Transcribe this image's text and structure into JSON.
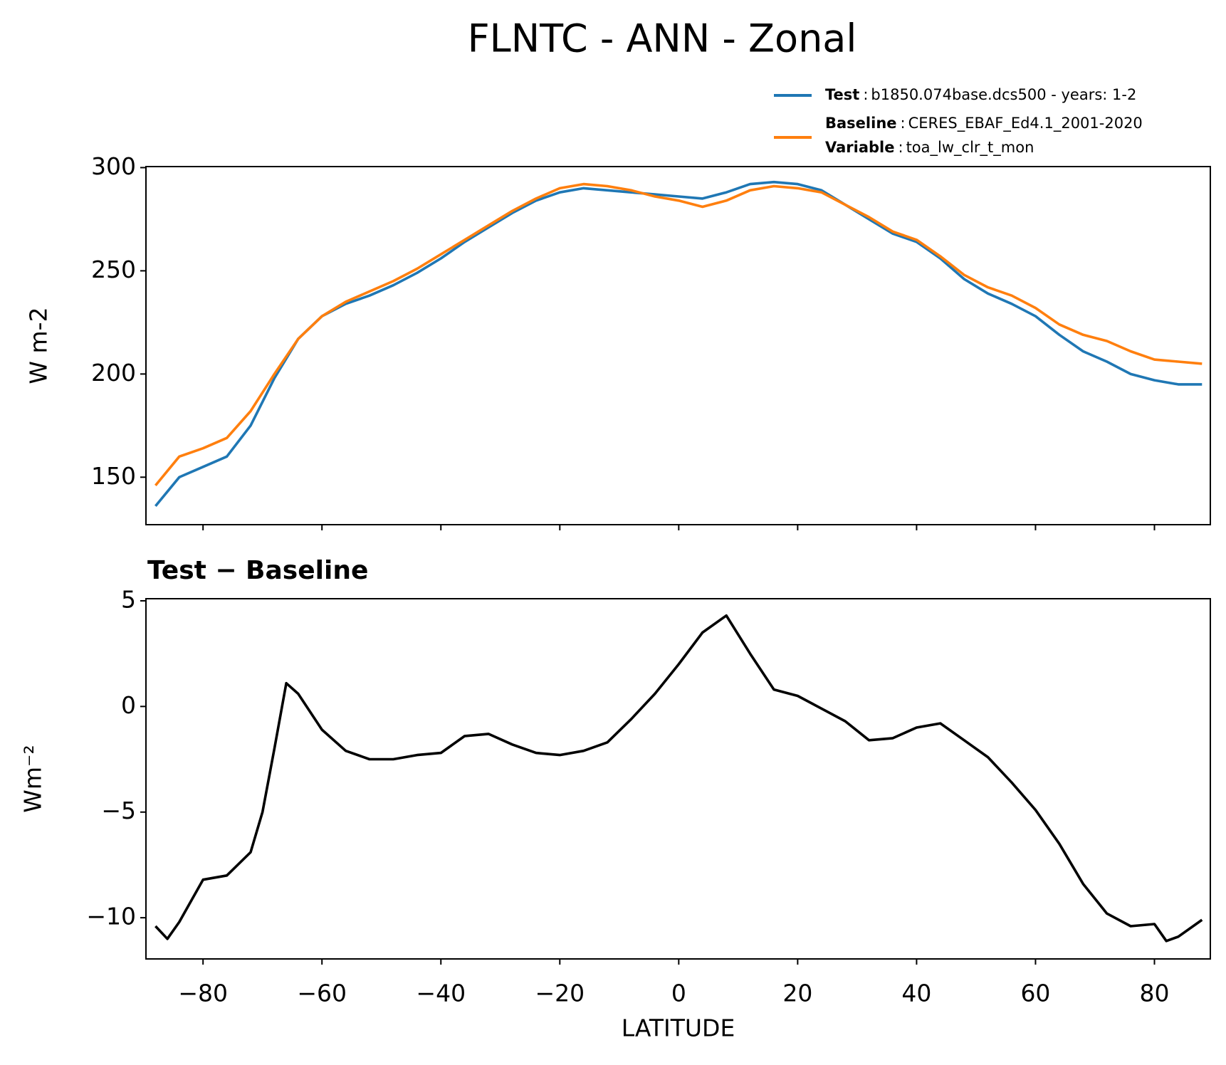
{
  "chart_data": [
    {
      "type": "line",
      "title": "FLNTC - ANN - Zonal",
      "ylabel": "W m-2",
      "legend_separator": ":",
      "x": [
        -88,
        -84,
        -80,
        -76,
        -72,
        -68,
        -64,
        -60,
        -56,
        -52,
        -48,
        -44,
        -40,
        -36,
        -32,
        -28,
        -24,
        -20,
        -16,
        -12,
        -8,
        -4,
        0,
        4,
        8,
        12,
        16,
        20,
        24,
        28,
        32,
        36,
        40,
        44,
        48,
        52,
        56,
        60,
        64,
        68,
        72,
        76,
        80,
        84,
        88
      ],
      "series": [
        {
          "name": "Test",
          "label": "b1850.074base.dcs500 - years: 1-2",
          "color": "#1f77b4",
          "values": [
            136,
            150,
            155,
            160,
            175,
            198,
            217,
            228,
            234,
            238,
            243,
            249,
            256,
            264,
            271,
            278,
            284,
            288,
            290,
            289,
            288,
            287,
            286,
            285,
            288,
            292,
            293,
            292,
            289,
            282,
            275,
            268,
            264,
            256,
            246,
            239,
            234,
            228,
            219,
            211,
            206,
            200,
            197,
            195,
            195
          ]
        },
        {
          "name": "Baseline",
          "label": "CERES_EBAF_Ed4.1_2001-2020",
          "color": "#ff7f0e",
          "values": [
            146,
            160,
            164,
            169,
            182,
            200,
            217,
            228,
            235,
            240,
            245,
            251,
            258,
            265,
            272,
            279,
            285,
            290,
            292,
            291,
            289,
            286,
            284,
            281,
            284,
            289,
            291,
            290,
            288,
            282,
            276,
            269,
            265,
            257,
            248,
            242,
            238,
            232,
            224,
            219,
            216,
            211,
            207,
            206,
            205
          ]
        }
      ],
      "legend_extra": {
        "name": "Variable",
        "label": "toa_lw_clr_t_mon"
      },
      "xlim": [
        -89.6,
        89.4
      ],
      "ylim": [
        127,
        300.5
      ],
      "yticks": [
        150,
        200,
        250,
        300
      ]
    },
    {
      "type": "line",
      "title": "Test − Baseline",
      "ylabel": "Wm⁻²",
      "xlabel": "LATITUDE",
      "x": [
        -88,
        -86,
        -84,
        -80,
        -76,
        -72,
        -70,
        -68,
        -66,
        -64,
        -60,
        -56,
        -52,
        -48,
        -44,
        -40,
        -36,
        -32,
        -28,
        -24,
        -20,
        -16,
        -12,
        -8,
        -4,
        0,
        4,
        8,
        12,
        16,
        20,
        24,
        28,
        32,
        36,
        40,
        44,
        48,
        52,
        56,
        60,
        64,
        68,
        72,
        76,
        80,
        82,
        84,
        88
      ],
      "series": [
        {
          "name": "Test − Baseline",
          "color": "#000000",
          "values": [
            -10.4,
            -11.0,
            -10.2,
            -8.2,
            -8.0,
            -6.9,
            -5.0,
            -2.0,
            1.1,
            0.6,
            -1.1,
            -2.1,
            -2.5,
            -2.5,
            -2.3,
            -2.2,
            -1.4,
            -1.3,
            -1.8,
            -2.2,
            -2.3,
            -2.1,
            -1.7,
            -0.6,
            0.6,
            2.0,
            3.5,
            4.3,
            2.5,
            0.8,
            0.5,
            -0.1,
            -0.7,
            -1.6,
            -1.5,
            -1.0,
            -0.8,
            -1.6,
            -2.4,
            -3.6,
            -4.9,
            -6.5,
            -8.4,
            -9.8,
            -10.4,
            -10.3,
            -11.1,
            -10.9,
            -10.1
          ]
        }
      ],
      "xlim": [
        -89.6,
        89.4
      ],
      "ylim": [
        -11.95,
        5.1
      ],
      "xticks": [
        {
          "value": -80,
          "label": "−80"
        },
        {
          "value": -60,
          "label": "−60"
        },
        {
          "value": -40,
          "label": "−40"
        },
        {
          "value": -20,
          "label": "−20"
        },
        0,
        20,
        40,
        60,
        80
      ],
      "yticks": [
        {
          "value": -10,
          "label": "−10"
        },
        {
          "value": -5,
          "label": "−5"
        },
        0,
        5
      ]
    }
  ]
}
